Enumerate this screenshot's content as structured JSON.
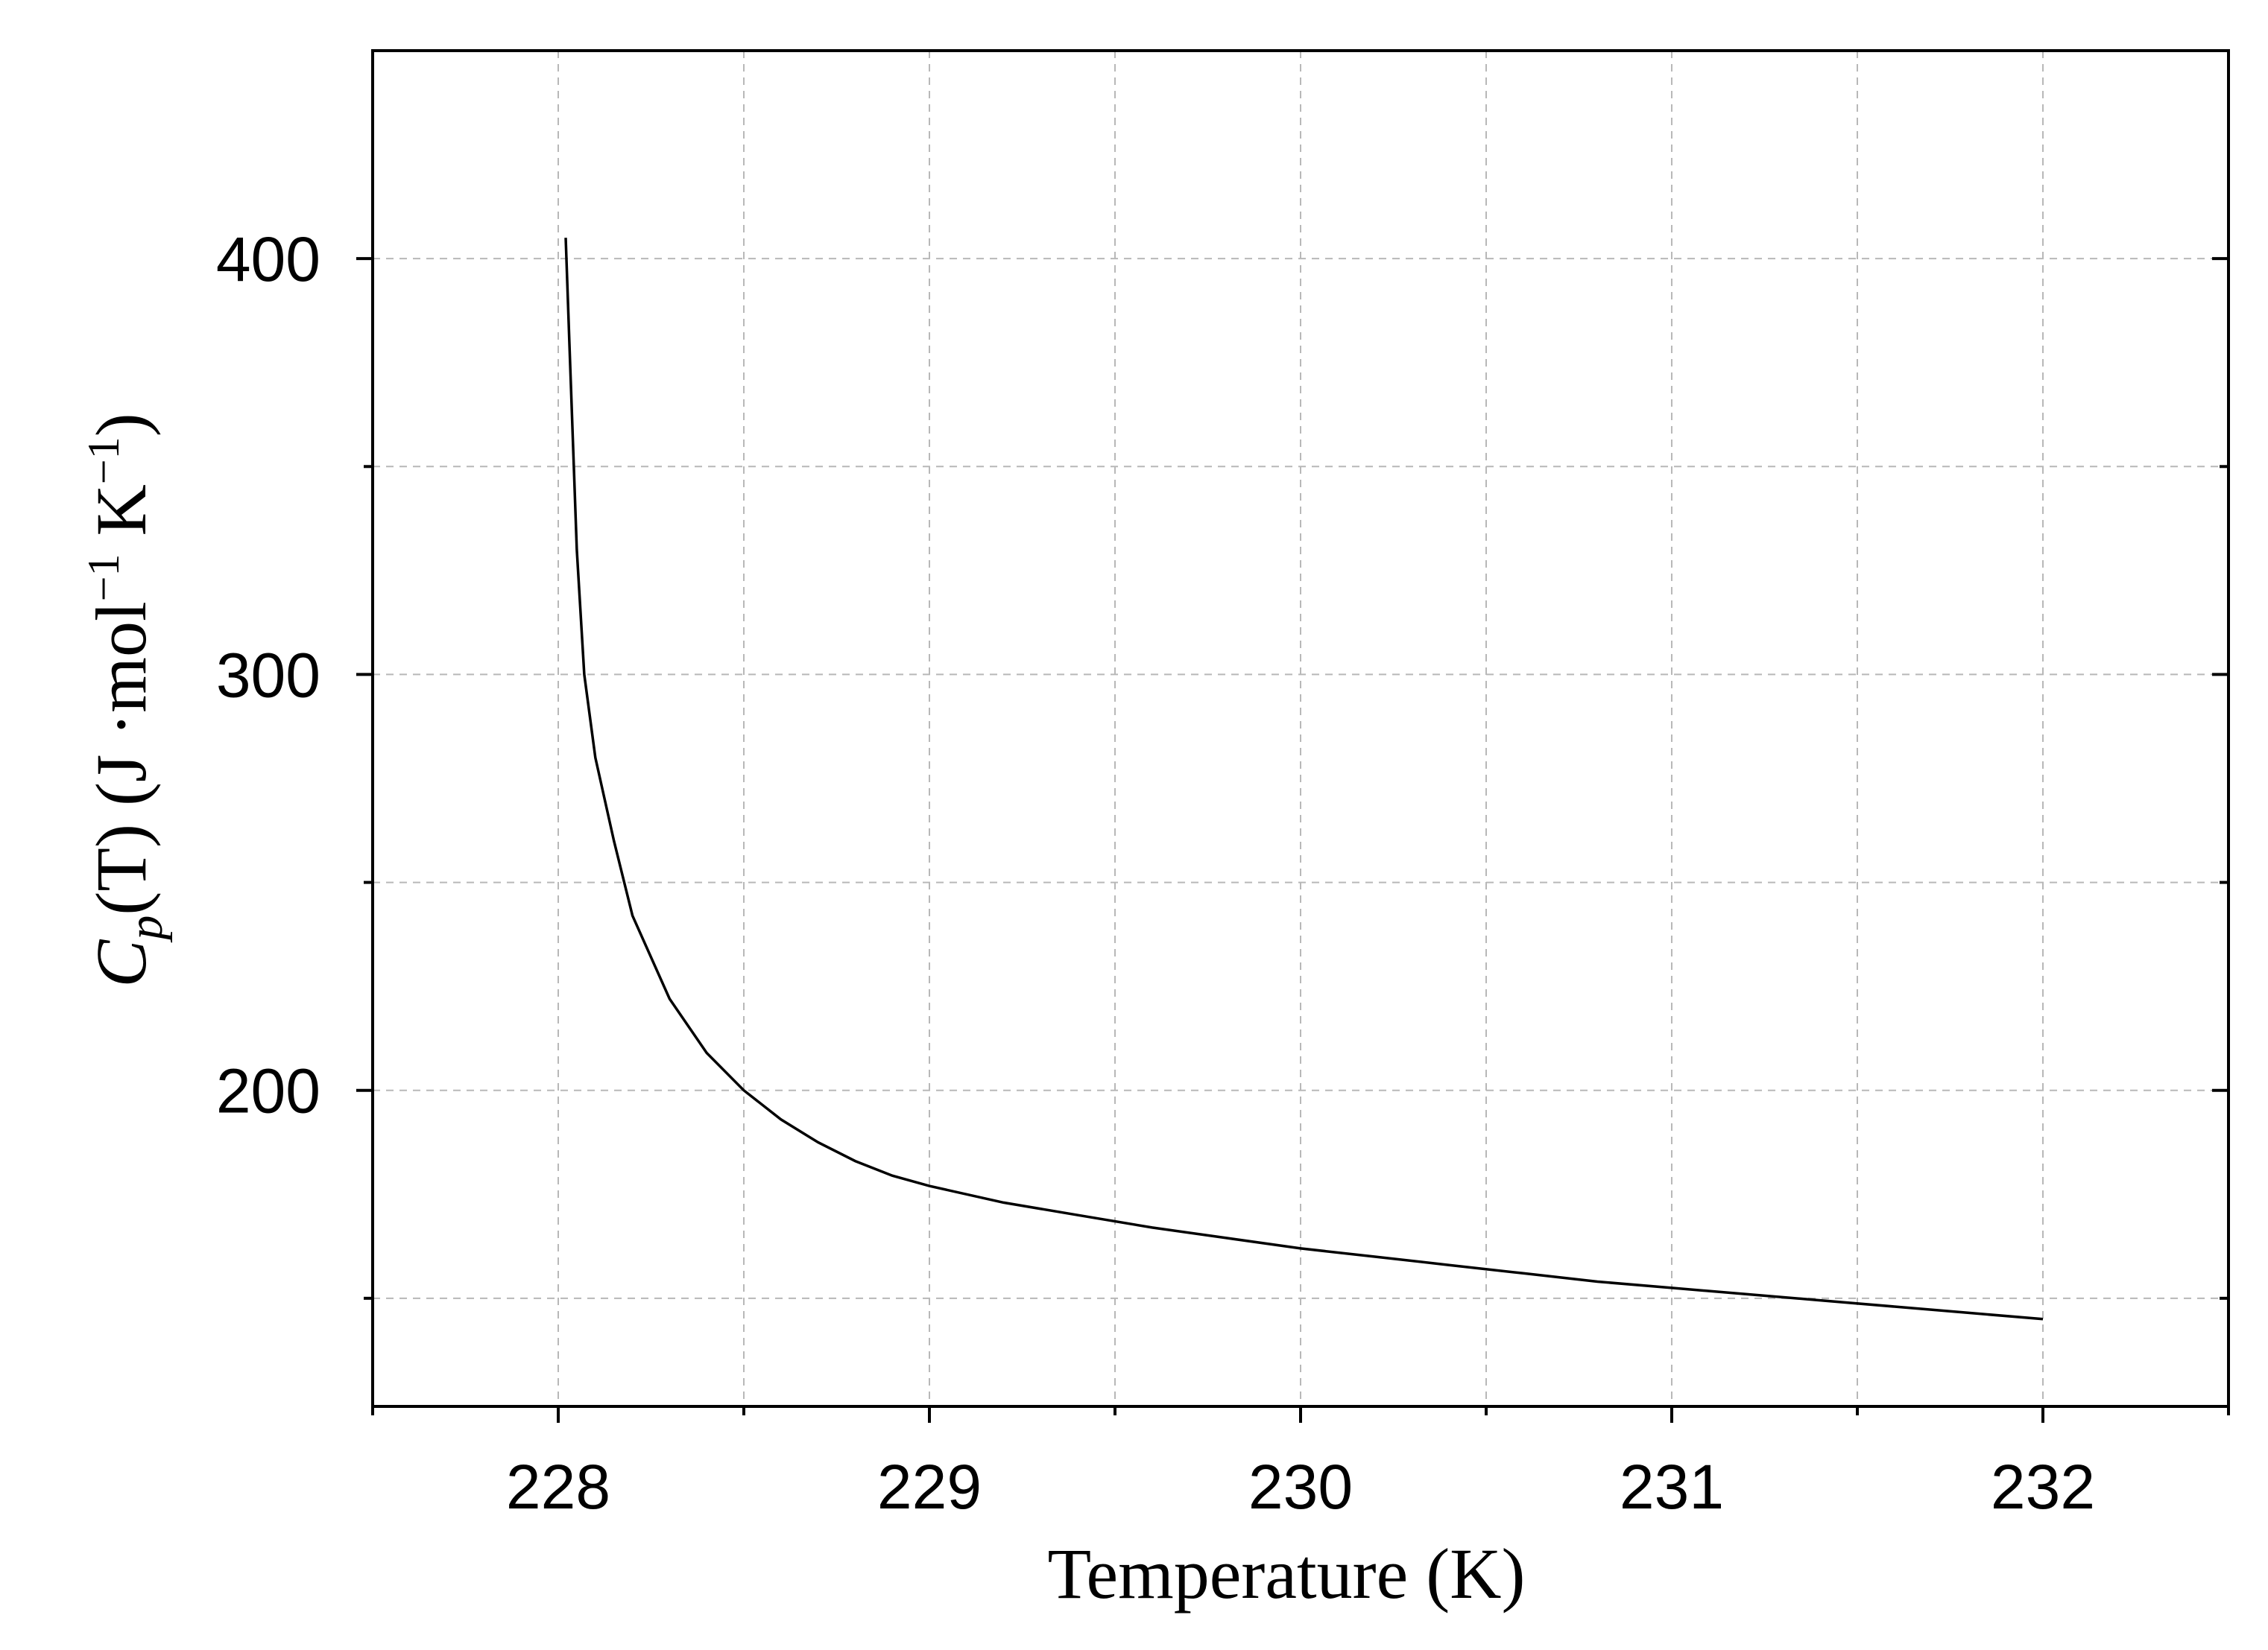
{
  "chart_data": {
    "type": "line",
    "xlabel": "Temperature (K)",
    "ylabel": {
      "symbol": "C",
      "subscript": "p",
      "argument": "(T)",
      "units_prefix": " (J ·mol",
      "exp1": "−1",
      "units_mid": " K",
      "exp2": "−1",
      "units_suffix": ")"
    },
    "xlim": [
      227.5,
      232.5
    ],
    "ylim": [
      124,
      450
    ],
    "x_ticks_major": [
      228,
      229,
      230,
      231,
      232
    ],
    "x_ticks_minor": [
      227.5,
      228.5,
      229.5,
      230.5,
      231.5,
      232.5
    ],
    "x_tick_labels": [
      "228",
      "229",
      "230",
      "231",
      "232"
    ],
    "y_ticks_major": [
      200,
      300,
      400
    ],
    "y_ticks_minor": [
      150,
      250,
      350
    ],
    "y_tick_labels": [
      "200",
      "300",
      "400"
    ],
    "grid": true,
    "series": [
      {
        "x": [
          228.02,
          228.03,
          228.05,
          228.07,
          228.1,
          228.15,
          228.2,
          228.3,
          228.4,
          228.5,
          228.6,
          228.7,
          228.8,
          228.9,
          229.0,
          229.2,
          229.4,
          229.6,
          229.8,
          230.0,
          230.2,
          230.4,
          230.6,
          230.8,
          231.0,
          231.2,
          231.4,
          231.6,
          231.8,
          232.0
        ],
        "y": [
          405,
          380,
          330,
          300,
          280,
          260,
          242,
          222,
          209,
          200,
          193,
          187.5,
          183,
          179.5,
          177,
          173,
          170,
          167,
          164.5,
          162,
          160,
          158,
          156,
          154,
          152.5,
          151,
          149.5,
          148,
          146.5,
          145
        ]
      }
    ]
  }
}
